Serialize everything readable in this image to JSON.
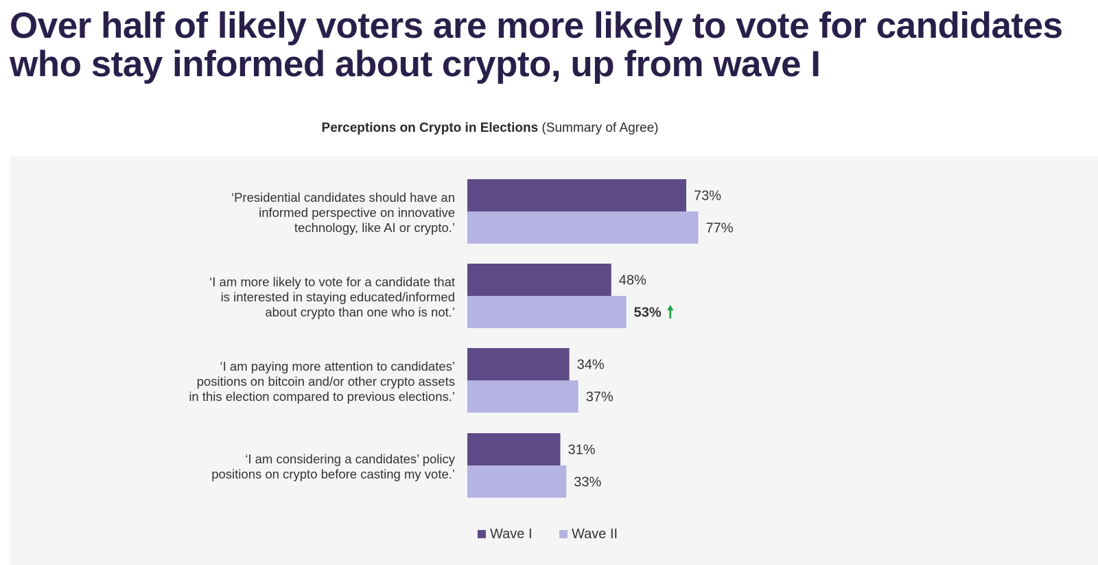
{
  "headline": "Over half of likely voters are more likely to vote for candidates who stay informed about crypto, up from wave I",
  "chart_data": {
    "type": "bar",
    "orientation": "horizontal",
    "title": "Perceptions on Crypto in Elections",
    "subtitle": "(Summary of Agree)",
    "categories": [
      [
        "‘Presidential candidates should have an",
        "informed perspective on innovative",
        "technology, like AI or crypto.’"
      ],
      [
        "‘I am more likely to vote for a candidate that",
        "is interested in staying educated/informed",
        "about crypto than  one who is not.’"
      ],
      [
        "‘I am paying more attention to candidates’",
        "positions on bitcoin and/or other crypto assets",
        "in this election compared to previous elections.’"
      ],
      [
        "‘I am considering a candidates’ policy",
        "positions on crypto before casting my vote.’"
      ]
    ],
    "series": [
      {
        "name": "Wave I",
        "color": "#5e4a86",
        "values": [
          73,
          48,
          34,
          31
        ],
        "labels": [
          "73%",
          "48%",
          "34%",
          "31%"
        ]
      },
      {
        "name": "Wave II",
        "color": "#b4b3e2",
        "values": [
          77,
          53,
          37,
          33
        ],
        "labels": [
          "77%",
          "53%",
          "37%",
          "33%"
        ]
      }
    ],
    "highlight": {
      "series": "Wave II",
      "category_index": 1,
      "bold": true,
      "indicator": "up-arrow",
      "indicator_glyph": "🠕",
      "indicator_color": "#1fa34a"
    },
    "xlim": [
      0,
      100
    ],
    "grid": false,
    "legend": {
      "position": "bottom",
      "entries": [
        "Wave I",
        "Wave II"
      ]
    }
  }
}
